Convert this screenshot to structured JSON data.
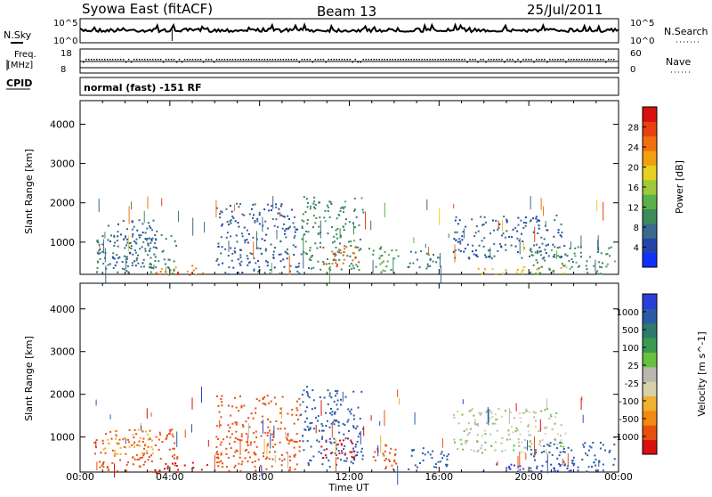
{
  "header": {
    "station": "Syowa East (fitACF)",
    "beam": "Beam 13",
    "date": "25/Jul/2011"
  },
  "noise_panel": {
    "left_label": "N.Sky",
    "right_label": "N.Search",
    "left_ticks": [
      "10^5",
      "10^0"
    ],
    "right_ticks": [
      "10^5",
      "10^0"
    ]
  },
  "freq_panel": {
    "left_label_1": "Freq.",
    "left_label_2": "[MHz]",
    "left_ticks": [
      "18",
      "8"
    ],
    "right_label": "Nave",
    "right_ticks": [
      "60",
      "0"
    ],
    "cpid_label": "CPID",
    "cpid_text": "normal (fast) -151 RF"
  },
  "colors": {
    "power_scale": [
      "#1030ff",
      "#2244aa",
      "#3a6a8c",
      "#3d8a5a",
      "#5ab04a",
      "#9fc83a",
      "#e8d020",
      "#f0a010",
      "#f07010",
      "#e84010",
      "#d81010"
    ],
    "velocity_scale": [
      "#2a3fd8",
      "#2a5aa8",
      "#2f7a6a",
      "#3a9a50",
      "#6ac040",
      "#b8b8b0",
      "#d8d0a8",
      "#f0b030",
      "#f08a10",
      "#e85010",
      "#d81010"
    ]
  },
  "chart_data": [
    {
      "type": "heatmap",
      "name": "power",
      "ylabel": "Slant Range [km]",
      "yticks": [
        "1000",
        "2000",
        "3000",
        "4000"
      ],
      "ylim": [
        180,
        4600
      ],
      "xticks": [
        "00:00",
        "04:00",
        "08:00",
        "12:00",
        "16:00",
        "20:00",
        "00:00"
      ],
      "colorbar_label": "Power [dB]",
      "colorbar_ticks": [
        "4",
        "8",
        "12",
        "16",
        "20",
        "24",
        "28"
      ],
      "colorbar_range": [
        0,
        32
      ],
      "regions": [
        {
          "t0": 0.6,
          "t1": 4.3,
          "r0": 200,
          "r1": 1200,
          "value": 8
        },
        {
          "t0": 1.2,
          "t1": 3.4,
          "r0": 400,
          "r1": 1600,
          "value": 6
        },
        {
          "t0": 3.3,
          "t1": 5.6,
          "r0": 180,
          "r1": 420,
          "value": 24
        },
        {
          "t0": 4.0,
          "t1": 5.0,
          "r0": 180,
          "r1": 300,
          "value": 28
        },
        {
          "t0": 6.0,
          "t1": 9.8,
          "r0": 200,
          "r1": 2000,
          "value": 6
        },
        {
          "t0": 9.8,
          "t1": 12.6,
          "r0": 300,
          "r1": 2200,
          "value": 10
        },
        {
          "t0": 10.8,
          "t1": 12.4,
          "r0": 400,
          "r1": 900,
          "value": 26
        },
        {
          "t0": 12.8,
          "t1": 14.2,
          "r0": 250,
          "r1": 900,
          "value": 12
        },
        {
          "t0": 14.5,
          "t1": 16.0,
          "r0": 250,
          "r1": 800,
          "value": 8
        },
        {
          "t0": 16.6,
          "t1": 21.6,
          "r0": 600,
          "r1": 1700,
          "value": 6
        },
        {
          "t0": 17.6,
          "t1": 22.0,
          "r0": 200,
          "r1": 400,
          "value": 20
        },
        {
          "t0": 20.0,
          "t1": 23.8,
          "r0": 200,
          "r1": 900,
          "value": 10
        }
      ]
    },
    {
      "type": "heatmap",
      "name": "velocity",
      "ylabel": "Slant Range [km]",
      "yticks": [
        "1000",
        "2000",
        "3000",
        "4000"
      ],
      "ylim": [
        180,
        4600
      ],
      "xticks": [
        "00:00",
        "04:00",
        "08:00",
        "12:00",
        "16:00",
        "20:00",
        "00:00"
      ],
      "xlabel": "Time UT",
      "colorbar_label": "Velocity [m s^-1]",
      "colorbar_ticks": [
        "1000",
        "500",
        "100",
        "25",
        "-25",
        "-100",
        "-500",
        "-1000"
      ],
      "regions": [
        {
          "t0": 0.6,
          "t1": 4.3,
          "r0": 200,
          "r1": 1200,
          "value": -100
        },
        {
          "t0": 1.0,
          "t1": 3.2,
          "r0": 600,
          "r1": 1200,
          "value": -20
        },
        {
          "t0": 3.3,
          "t1": 6.0,
          "r0": 180,
          "r1": 420,
          "value": -300
        },
        {
          "t0": 6.0,
          "t1": 9.8,
          "r0": 200,
          "r1": 2000,
          "value": -100
        },
        {
          "t0": 9.8,
          "t1": 12.6,
          "r0": 300,
          "r1": 2200,
          "value": 100
        },
        {
          "t0": 10.5,
          "t1": 12.2,
          "r0": 500,
          "r1": 1000,
          "value": -300
        },
        {
          "t0": 12.8,
          "t1": 14.2,
          "r0": 250,
          "r1": 900,
          "value": -150
        },
        {
          "t0": 14.5,
          "t1": 16.4,
          "r0": 250,
          "r1": 800,
          "value": 200
        },
        {
          "t0": 16.6,
          "t1": 21.6,
          "r0": 600,
          "r1": 1700,
          "value": 0
        },
        {
          "t0": 17.6,
          "t1": 22.0,
          "r0": 200,
          "r1": 400,
          "value": 300
        },
        {
          "t0": 20.0,
          "t1": 23.8,
          "r0": 200,
          "r1": 900,
          "value": 150
        }
      ]
    }
  ]
}
